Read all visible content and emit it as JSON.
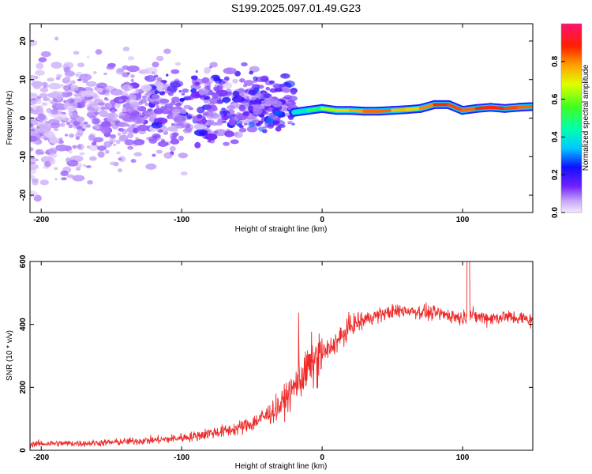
{
  "title": "S199.2025.097.01.49.G23",
  "colors": {
    "snr_line": "#ee2a2a",
    "spectrum_low": "#a070e8",
    "spectrum_high": "#ee1a1a"
  },
  "chart_data": [
    {
      "type": "heatmap",
      "xlabel": "Height of straight line (km)",
      "ylabel": "Frequency (Hz)",
      "xlim": [
        -208,
        150
      ],
      "ylim": [
        -24.5,
        24.5
      ],
      "xticks": [
        -200,
        -100,
        0,
        100
      ],
      "yticks": [
        -20,
        -10,
        0,
        10,
        20
      ],
      "colorbar": {
        "label": "Normalized spectral amplitude",
        "range": [
          0.0,
          1.0
        ],
        "ticks": [
          0.0,
          0.2,
          0.4,
          0.6,
          0.8
        ],
        "tick_labels": [
          "0.0",
          "0.2",
          "0.4",
          "0.6",
          "0.8"
        ],
        "colormap": "rainbow (lavender-violet-blue-cyan-green-yellow-orange-red-magenta)"
      },
      "dominant_frequency_track": {
        "x": [
          -20,
          -10,
          0,
          10,
          20,
          30,
          40,
          50,
          60,
          70,
          80,
          90,
          100,
          110,
          120,
          130,
          140,
          150
        ],
        "frequency": [
          1.5,
          2.0,
          2.5,
          2.0,
          2.0,
          1.8,
          1.8,
          2.0,
          2.2,
          2.5,
          3.5,
          3.5,
          2.0,
          2.5,
          2.8,
          2.5,
          2.8,
          3.0
        ],
        "amplitude": [
          0.35,
          0.45,
          0.55,
          0.7,
          0.75,
          0.8,
          0.85,
          0.8,
          0.7,
          0.75,
          0.85,
          0.9,
          0.8,
          0.85,
          0.9,
          0.85,
          0.85,
          0.8
        ]
      },
      "scatter_region": {
        "x_range": [
          -208,
          -20
        ],
        "frequency_range": [
          -24,
          24
        ],
        "amplitude_range": [
          0.0,
          0.2
        ]
      }
    },
    {
      "type": "line",
      "xlabel": "Height of straight line (km)",
      "ylabel": "SNR (10 * v/v)",
      "xlim": [
        -208,
        150
      ],
      "ylim": [
        0,
        600
      ],
      "xticks": [
        -200,
        -100,
        0,
        100
      ],
      "yticks": [
        0,
        200,
        400,
        600
      ],
      "series": [
        {
          "x": [
            -208,
            -190,
            -170,
            -150,
            -130,
            -110,
            -90,
            -80,
            -70,
            -60,
            -50,
            -40,
            -30,
            -25,
            -20,
            -15,
            -10,
            -5,
            0,
            5,
            10,
            15,
            20,
            30,
            40,
            50,
            60,
            70,
            80,
            90,
            100,
            104,
            110,
            120,
            130,
            140,
            150
          ],
          "y": [
            20,
            22,
            22,
            25,
            30,
            35,
            45,
            55,
            60,
            70,
            85,
            110,
            140,
            170,
            200,
            230,
            260,
            285,
            305,
            320,
            345,
            365,
            395,
            415,
            430,
            440,
            445,
            440,
            435,
            430,
            420,
            430,
            425,
            420,
            425,
            420,
            415
          ]
        }
      ]
    }
  ]
}
